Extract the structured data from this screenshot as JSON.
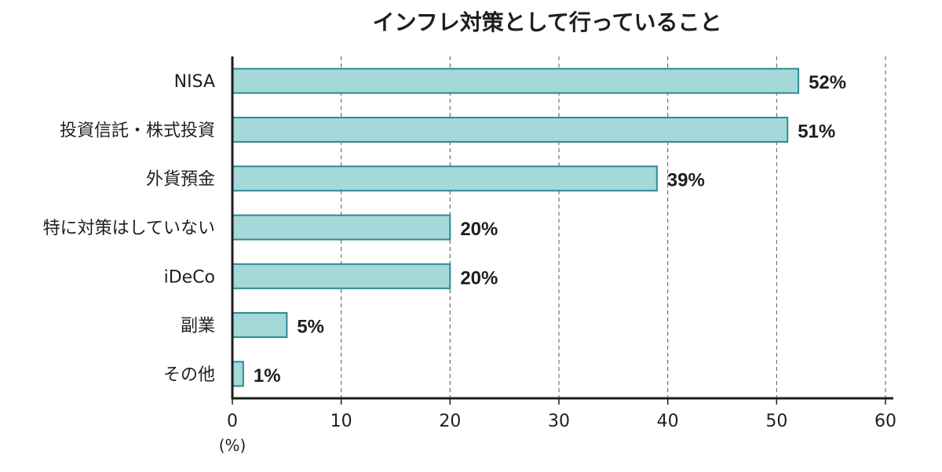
{
  "chart_data": {
    "type": "bar",
    "orientation": "horizontal",
    "title": "インフレ対策として行っていること",
    "categories": [
      "NISA",
      "投資信託・株式投資",
      "外貨預金",
      "特に対策はしていない",
      "iDeCo",
      "副業",
      "その他"
    ],
    "values": [
      52,
      51,
      39,
      20,
      20,
      5,
      1
    ],
    "value_labels": [
      "52%",
      "51%",
      "39%",
      "20%",
      "20%",
      "5%",
      "1%"
    ],
    "xlim": [
      0,
      60
    ],
    "xticks": [
      0,
      10,
      20,
      30,
      40,
      50,
      60
    ],
    "xtick_labels": [
      "0",
      "10",
      "20",
      "30",
      "40",
      "50",
      "60"
    ],
    "x_unit": "(%)",
    "grid": "vertical-dashed",
    "colors": {
      "bar_fill": "#a5d8d8",
      "bar_stroke": "#2a8a96",
      "axis": "#1e1e1e",
      "grid": "#555555",
      "text": "#1e1e1e"
    }
  }
}
